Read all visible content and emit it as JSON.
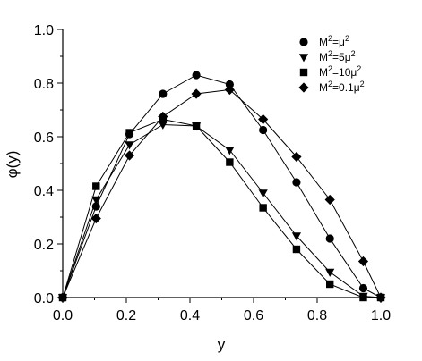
{
  "chart_data": {
    "type": "line",
    "xlabel": "y",
    "ylabel": "φ(y)",
    "xlim": [
      0.0,
      1.0
    ],
    "ylim": [
      0.0,
      1.0
    ],
    "x_ticks": [
      "0.0",
      "0.2",
      "0.4",
      "0.6",
      "0.8",
      "1.0"
    ],
    "y_ticks": [
      "0.0",
      "0.2",
      "0.4",
      "0.6",
      "0.8",
      "1.0"
    ],
    "legend_position": "top-right",
    "grid": false,
    "series": [
      {
        "name": "M²=μ²",
        "marker": "circle",
        "x": [
          0.0,
          0.105,
          0.21,
          0.315,
          0.42,
          0.525,
          0.63,
          0.735,
          0.84,
          0.945,
          1.0
        ],
        "y": [
          0.0,
          0.34,
          0.61,
          0.76,
          0.83,
          0.795,
          0.625,
          0.43,
          0.22,
          0.035,
          0.0
        ]
      },
      {
        "name": "M²=5μ²",
        "marker": "triangle-down",
        "x": [
          0.0,
          0.105,
          0.21,
          0.315,
          0.42,
          0.525,
          0.63,
          0.735,
          0.84,
          0.945,
          1.0
        ],
        "y": [
          0.0,
          0.365,
          0.57,
          0.645,
          0.64,
          0.55,
          0.39,
          0.23,
          0.095,
          0.005,
          0.0
        ]
      },
      {
        "name": "M²=10μ²",
        "marker": "square",
        "x": [
          0.0,
          0.105,
          0.21,
          0.315,
          0.42,
          0.525,
          0.63,
          0.735,
          0.84,
          0.945,
          1.0
        ],
        "y": [
          0.0,
          0.415,
          0.615,
          0.665,
          0.64,
          0.505,
          0.335,
          0.18,
          0.05,
          0.0,
          0.0
        ]
      },
      {
        "name": "M²=0.1μ²",
        "marker": "diamond",
        "x": [
          0.0,
          0.105,
          0.21,
          0.315,
          0.42,
          0.525,
          0.63,
          0.735,
          0.84,
          0.945,
          1.0
        ],
        "y": [
          0.0,
          0.295,
          0.53,
          0.675,
          0.76,
          0.775,
          0.665,
          0.525,
          0.365,
          0.135,
          0.0
        ]
      }
    ]
  },
  "legend": {
    "items": [
      {
        "base": "M",
        "sup1": "2",
        "mid": "=μ",
        "sup2": "2"
      },
      {
        "base": "M",
        "sup1": "2",
        "mid": "=5μ",
        "sup2": "2"
      },
      {
        "base": "M",
        "sup1": "2",
        "mid": "=10μ",
        "sup2": "2"
      },
      {
        "base": "M",
        "sup1": "2",
        "mid": "=0.1μ",
        "sup2": "2"
      }
    ]
  }
}
